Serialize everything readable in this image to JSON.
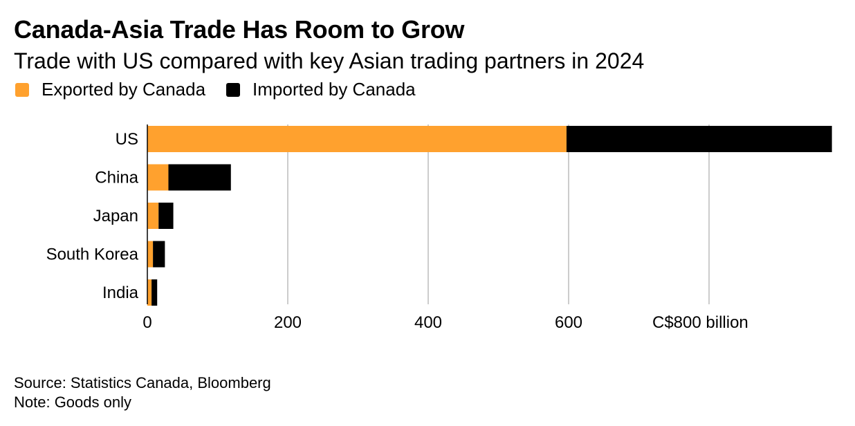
{
  "chart_data": {
    "type": "bar",
    "orientation": "horizontal",
    "stacked": true,
    "title": "Canada-Asia Trade Has Room to Grow",
    "subtitle": "Trade with US compared with key Asian trading partners in 2024",
    "categories": [
      "US",
      "China",
      "Japan",
      "South Korea",
      "India"
    ],
    "series": [
      {
        "name": "Exported by Canada",
        "color": "#ffa12e",
        "values": [
          597,
          30,
          16,
          8,
          6
        ]
      },
      {
        "name": "Imported by Canada",
        "color": "#000000",
        "values": [
          378,
          89,
          21,
          17,
          8
        ]
      }
    ],
    "x_ticks": [
      0,
      200,
      400,
      600,
      800
    ],
    "x_tick_labels": [
      "0",
      "200",
      "400",
      "600",
      "C$800 billion"
    ],
    "xlim": [
      0,
      975
    ],
    "grid": true,
    "legend_position": "top-left"
  },
  "footer": {
    "source": "Source: Statistics Canada, Bloomberg",
    "note": "Note: Goods only"
  }
}
